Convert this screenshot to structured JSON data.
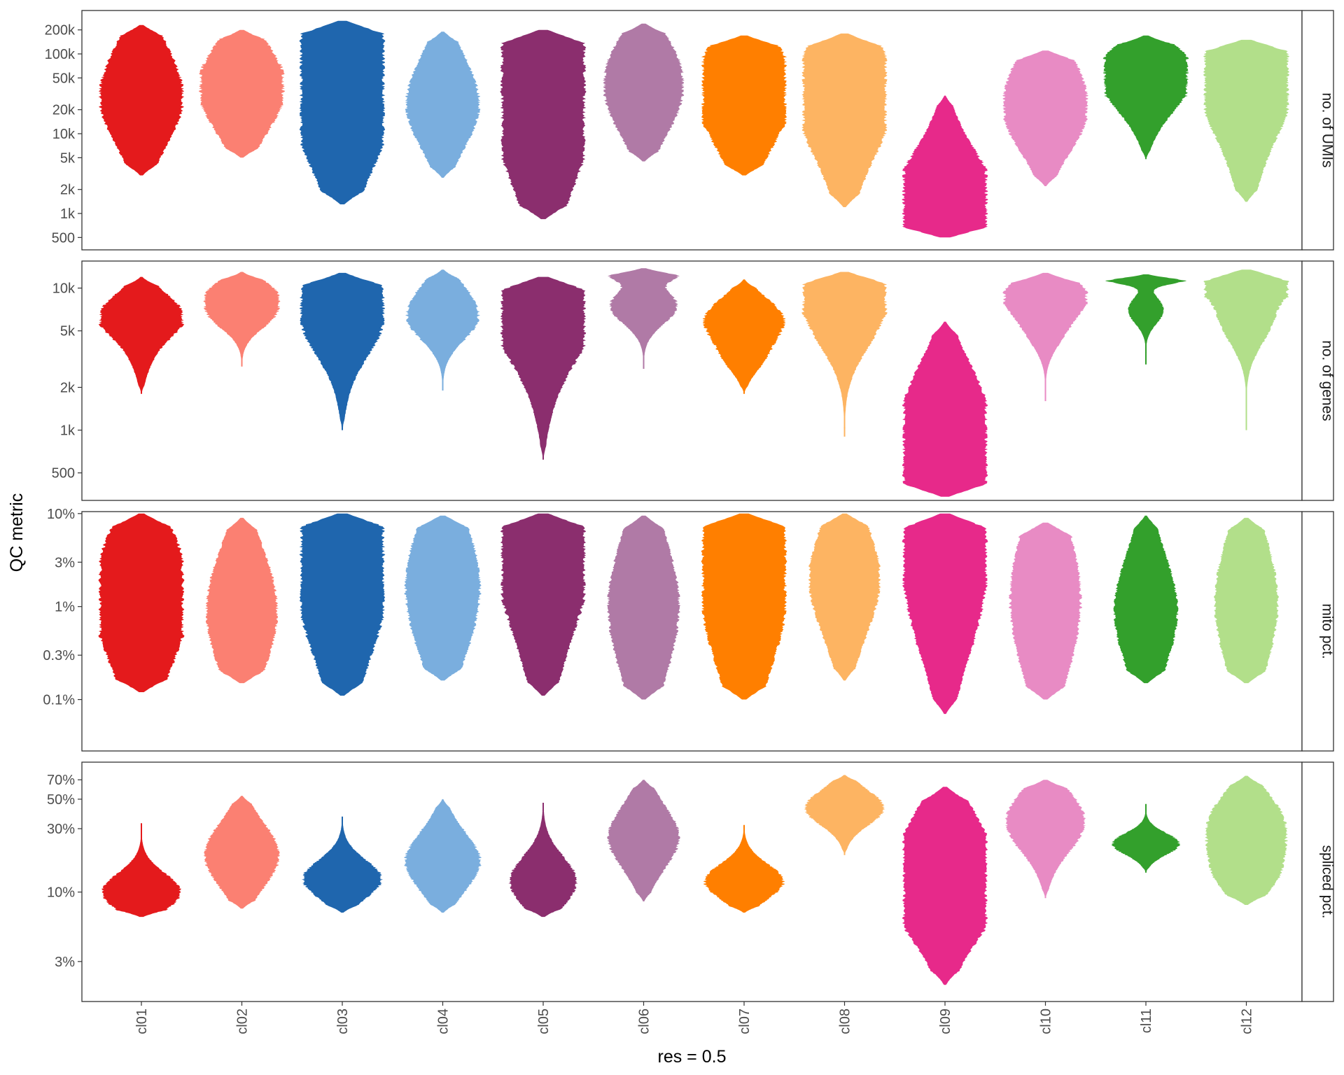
{
  "chart_data": {
    "type": "violin",
    "xlabel": "res = 0.5",
    "ylabel": "QC metric",
    "categories": [
      "cl01",
      "cl02",
      "cl03",
      "cl04",
      "cl05",
      "cl06",
      "cl07",
      "cl08",
      "cl09",
      "cl10",
      "cl11",
      "cl12"
    ],
    "colors": [
      "#e41a1c",
      "#fb8072",
      "#1f66ae",
      "#7aaede",
      "#8b2e6e",
      "#b07aa6",
      "#ff7f00",
      "#fdb462",
      "#e7298a",
      "#e88bc4",
      "#33a02c",
      "#b2df8a"
    ],
    "panels": [
      {
        "strip": "no. of UMIs",
        "scale": "log10",
        "ylim": [
          350,
          350000
        ],
        "ticks": [
          500,
          1000,
          2000,
          5000,
          10000,
          20000,
          50000,
          100000,
          200000
        ],
        "tick_labels": [
          "500",
          "1k",
          "2k",
          "5k",
          "10k",
          "20k",
          "50k",
          "100k",
          "200k"
        ],
        "violins": [
          {
            "min": 3000,
            "max": 230000,
            "modes": [
              [
                27000,
                1.0,
                0.32
              ],
              [
                150000,
                0.12,
                0.35
              ]
            ]
          },
          {
            "min": 5000,
            "max": 200000,
            "modes": [
              [
                25000,
                0.85,
                0.3
              ],
              [
                80000,
                0.45,
                0.25
              ]
            ]
          },
          {
            "min": 1300,
            "max": 260000,
            "modes": [
              [
                25000,
                1.0,
                0.38
              ],
              [
                90000,
                0.55,
                0.3
              ],
              [
                3000,
                0.08,
                0.3
              ]
            ]
          },
          {
            "min": 2800,
            "max": 190000,
            "modes": [
              [
                20000,
                0.85,
                0.28
              ],
              [
                90000,
                0.2,
                0.25
              ]
            ]
          },
          {
            "min": 850,
            "max": 200000,
            "modes": [
              [
                17000,
                1.0,
                0.4
              ],
              [
                70000,
                0.6,
                0.25
              ],
              [
                2500,
                0.12,
                0.3
              ]
            ]
          },
          {
            "min": 4500,
            "max": 240000,
            "modes": [
              [
                25000,
                0.85,
                0.28
              ],
              [
                110000,
                0.45,
                0.22
              ]
            ]
          },
          {
            "min": 3000,
            "max": 170000,
            "modes": [
              [
                22000,
                1.0,
                0.35
              ],
              [
                80000,
                0.45,
                0.25
              ]
            ]
          },
          {
            "min": 1200,
            "max": 180000,
            "modes": [
              [
                18000,
                0.85,
                0.35
              ],
              [
                60000,
                0.55,
                0.28
              ]
            ]
          },
          {
            "min": 500,
            "max": 30000,
            "modes": [
              [
                2200,
                1.0,
                0.32
              ],
              [
                800,
                0.7,
                0.2
              ]
            ]
          },
          {
            "min": 2200,
            "max": 110000,
            "modes": [
              [
                35000,
                0.85,
                0.35
              ],
              [
                12000,
                0.35,
                0.25
              ]
            ]
          },
          {
            "min": 4800,
            "max": 170000,
            "modes": [
              [
                70000,
                1.0,
                0.2
              ],
              [
                25000,
                0.55,
                0.22
              ]
            ]
          },
          {
            "min": 1400,
            "max": 150000,
            "modes": [
              [
                30000,
                0.9,
                0.38
              ],
              [
                80000,
                0.6,
                0.22
              ]
            ]
          }
        ]
      },
      {
        "strip": "no. of genes",
        "scale": "log10",
        "ylim": [
          320,
          15500
        ],
        "ticks": [
          500,
          1000,
          2000,
          5000,
          10000
        ],
        "tick_labels": [
          "500",
          "1k",
          "2k",
          "5k",
          "10k"
        ],
        "violins": [
          {
            "min": 1800,
            "max": 12000,
            "modes": [
              [
                6200,
                1.0,
                0.16
              ],
              [
                3500,
                0.25,
                0.18
              ],
              [
                9500,
                0.2,
                0.12
              ]
            ]
          },
          {
            "min": 2800,
            "max": 13000,
            "modes": [
              [
                6800,
                0.85,
                0.18
              ],
              [
                10000,
                0.5,
                0.12
              ]
            ]
          },
          {
            "min": 1000,
            "max": 12800,
            "modes": [
              [
                5800,
                0.95,
                0.2
              ],
              [
                10500,
                0.5,
                0.12
              ],
              [
                2500,
                0.15,
                0.2
              ]
            ]
          },
          {
            "min": 1900,
            "max": 13500,
            "modes": [
              [
                6000,
                0.85,
                0.18
              ],
              [
                10000,
                0.3,
                0.14
              ]
            ]
          },
          {
            "min": 620,
            "max": 12000,
            "modes": [
              [
                5500,
                1.0,
                0.22
              ],
              [
                9500,
                0.65,
                0.15
              ],
              [
                2000,
                0.18,
                0.22
              ]
            ]
          },
          {
            "min": 2700,
            "max": 13800,
            "modes": [
              [
                7500,
                0.85,
                0.18
              ],
              [
                12500,
                0.7,
                0.06
              ]
            ]
          },
          {
            "min": 1800,
            "max": 11500,
            "modes": [
              [
                6000,
                1.0,
                0.18
              ],
              [
                3200,
                0.4,
                0.14
              ]
            ]
          },
          {
            "min": 900,
            "max": 13000,
            "modes": [
              [
                6500,
                0.9,
                0.22
              ],
              [
                11000,
                0.5,
                0.12
              ]
            ]
          },
          {
            "min": 340,
            "max": 5800,
            "modes": [
              [
                1400,
                1.0,
                0.28
              ],
              [
                500,
                0.9,
                0.18
              ]
            ]
          },
          {
            "min": 1600,
            "max": 12800,
            "modes": [
              [
                9000,
                1.0,
                0.15
              ],
              [
                5000,
                0.4,
                0.15
              ]
            ]
          },
          {
            "min": 2900,
            "max": 12500,
            "modes": [
              [
                11500,
                1.0,
                0.05
              ],
              [
                7000,
                0.45,
                0.15
              ]
            ]
          },
          {
            "min": 1000,
            "max": 13500,
            "modes": [
              [
                11500,
                1.0,
                0.08
              ],
              [
                7500,
                0.65,
                0.16
              ],
              [
                4500,
                0.2,
                0.14
              ]
            ]
          }
        ]
      },
      {
        "strip": "mito pct.",
        "scale": "log10",
        "ylim": [
          0.028,
          10.5
        ],
        "ticks": [
          0.1,
          0.3,
          1,
          3,
          10
        ],
        "tick_labels": [
          "0.1%",
          "0.3%",
          "1%",
          "3%",
          "10%"
        ],
        "violins": [
          {
            "min": 0.12,
            "max": 10,
            "modes": [
              [
                0.85,
                1.0,
                0.38
              ],
              [
                3.5,
                0.35,
                0.3
              ]
            ]
          },
          {
            "min": 0.15,
            "max": 9,
            "modes": [
              [
                0.9,
                0.9,
                0.38
              ]
            ]
          },
          {
            "min": 0.11,
            "max": 10,
            "modes": [
              [
                1.5,
                1.0,
                0.45
              ],
              [
                6,
                0.5,
                0.25
              ]
            ]
          },
          {
            "min": 0.16,
            "max": 9.5,
            "modes": [
              [
                1.6,
                0.95,
                0.42
              ]
            ]
          },
          {
            "min": 0.11,
            "max": 10,
            "modes": [
              [
                2.0,
                1.0,
                0.42
              ],
              [
                7,
                0.6,
                0.2
              ]
            ]
          },
          {
            "min": 0.1,
            "max": 9.5,
            "modes": [
              [
                1.0,
                0.9,
                0.4
              ]
            ]
          },
          {
            "min": 0.1,
            "max": 10,
            "modes": [
              [
                1.3,
                1.0,
                0.45
              ],
              [
                6,
                0.4,
                0.25
              ]
            ]
          },
          {
            "min": 0.16,
            "max": 10,
            "modes": [
              [
                2.0,
                0.9,
                0.35
              ]
            ]
          },
          {
            "min": 0.07,
            "max": 10,
            "modes": [
              [
                6,
                1.0,
                0.45
              ],
              [
                0.6,
                0.25,
                0.3
              ]
            ]
          },
          {
            "min": 0.1,
            "max": 8,
            "modes": [
              [
                1.2,
                0.9,
                0.45
              ]
            ]
          },
          {
            "min": 0.15,
            "max": 9.5,
            "modes": [
              [
                0.9,
                0.8,
                0.35
              ]
            ]
          },
          {
            "min": 0.15,
            "max": 9,
            "modes": [
              [
                1.1,
                0.8,
                0.42
              ]
            ]
          }
        ]
      },
      {
        "strip": "spliced pct.",
        "scale": "log10",
        "ylim": [
          1.5,
          95
        ],
        "ticks": [
          3,
          10,
          30,
          50,
          70
        ],
        "tick_labels": [
          "3%",
          "10%",
          "30%",
          "50%",
          "70%"
        ],
        "violins": [
          {
            "min": 6.5,
            "max": 33,
            "modes": [
              [
                10,
                1.0,
                0.2
              ]
            ]
          },
          {
            "min": 7.5,
            "max": 53,
            "modes": [
              [
                19,
                0.95,
                0.28
              ]
            ]
          },
          {
            "min": 7,
            "max": 37,
            "modes": [
              [
                12.5,
                1.0,
                0.2
              ]
            ]
          },
          {
            "min": 7,
            "max": 50,
            "modes": [
              [
                17,
                0.95,
                0.26
              ]
            ]
          },
          {
            "min": 6.5,
            "max": 47,
            "modes": [
              [
                12,
                0.85,
                0.22
              ]
            ]
          },
          {
            "min": 8.5,
            "max": 70,
            "modes": [
              [
                26,
                0.9,
                0.26
              ]
            ]
          },
          {
            "min": 7,
            "max": 32,
            "modes": [
              [
                12,
                1.0,
                0.2
              ]
            ]
          },
          {
            "min": 19,
            "max": 76,
            "modes": [
              [
                43,
                1.0,
                0.22
              ]
            ]
          },
          {
            "min": 2,
            "max": 62,
            "modes": [
              [
                19,
                1.0,
                0.26
              ],
              [
                7,
                0.7,
                0.22
              ]
            ]
          },
          {
            "min": 9,
            "max": 70,
            "modes": [
              [
                34,
                1.0,
                0.26
              ]
            ]
          },
          {
            "min": 14,
            "max": 46,
            "modes": [
              [
                23,
                0.85,
                0.16
              ]
            ]
          },
          {
            "min": 8,
            "max": 75,
            "modes": [
              [
                32,
                0.95,
                0.24
              ],
              [
                13,
                0.6,
                0.18
              ]
            ]
          }
        ]
      }
    ]
  }
}
